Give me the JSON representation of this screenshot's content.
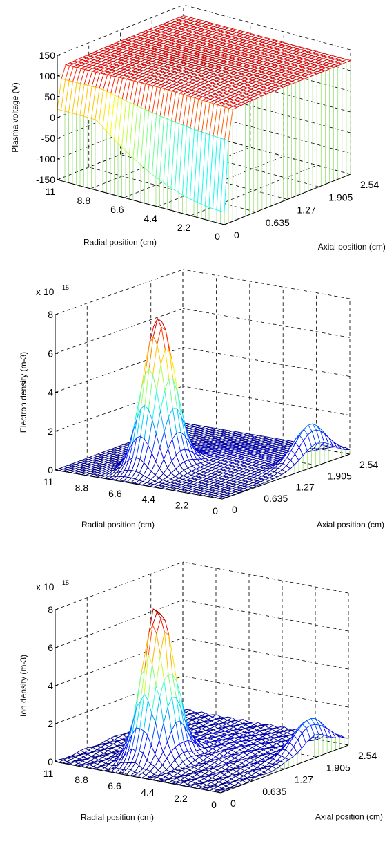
{
  "chart_data": [
    {
      "type": "surface",
      "zlabel": "Plasma voltage (V)",
      "xlabel": "Radial position (cm)",
      "ylabel": "Axial position (cm)",
      "z_multiplier": "",
      "z_ticks": [
        "150",
        "100",
        "50",
        "0",
        "-50",
        "-100",
        "-150"
      ],
      "r_ticks": [
        "11",
        "8.8",
        "6.6",
        "4.4",
        "2.2",
        "0"
      ],
      "a_ticks": [
        "0",
        "0.635",
        "1.27",
        "1.905",
        "2.54"
      ],
      "zlim": [
        -150,
        150
      ],
      "rlim": [
        0,
        11
      ],
      "alim": [
        0,
        2.54
      ],
      "colormap": "jet",
      "surface_description": "Voltage about 125 V over most of the region, falling to near 0 V at the axial end near a=0 and rising toward the outer radius; maximum about 135 V near a≈0.8 cm, r≈5 cm.",
      "key_values": [
        {
          "r": 11,
          "a": 0,
          "z": 0
        },
        {
          "r": 0,
          "a": 0,
          "z": -120
        },
        {
          "r": 5,
          "a": 0.8,
          "z": 135
        },
        {
          "r": 0,
          "a": 2.54,
          "z": 85
        },
        {
          "r": 11,
          "a": 2.54,
          "z": 120
        }
      ]
    },
    {
      "type": "surface",
      "zlabel": "Electron density (m-3)",
      "xlabel": "Radial position (cm)",
      "ylabel": "Axial position (cm)",
      "z_multiplier": "x 10",
      "z_exponent": "15",
      "z_ticks": [
        "8",
        "6",
        "4",
        "2",
        "0"
      ],
      "r_ticks": [
        "11",
        "8.8",
        "6.6",
        "4.4",
        "2.2",
        "0"
      ],
      "a_ticks": [
        "0",
        "0.635",
        "1.27",
        "1.905",
        "2.54"
      ],
      "zlim": [
        0,
        8
      ],
      "rlim": [
        0,
        11
      ],
      "alim": [
        0,
        2.54
      ],
      "colormap": "jet",
      "surface_description": "Sharp peak of about 7.7e15 m-3 near r≈6.5 cm, a≈0.7 cm, decaying to near zero elsewhere with a secondary ridge of about 2e15 near r≈0.5 cm, a≈1.9 cm.",
      "key_values": [
        {
          "r": 6.5,
          "a": 0.7,
          "z": 7.7
        },
        {
          "r": 0.5,
          "a": 1.9,
          "z": 2.0
        },
        {
          "r": 11,
          "a": 0,
          "z": 0
        },
        {
          "r": 11,
          "a": 2.54,
          "z": 0.2
        }
      ]
    },
    {
      "type": "surface",
      "zlabel": "Ion density (m-3)",
      "xlabel": "Radial position (cm)",
      "ylabel": "Axial position (cm)",
      "z_multiplier": "x 10",
      "z_exponent": "15",
      "z_ticks": [
        "8",
        "6",
        "4",
        "2",
        "0"
      ],
      "r_ticks": [
        "11",
        "8.8",
        "6.6",
        "4.4",
        "2.2",
        "0"
      ],
      "a_ticks": [
        "0",
        "0.635",
        "1.27",
        "1.905",
        "2.54"
      ],
      "zlim": [
        0,
        8
      ],
      "rlim": [
        0,
        11
      ],
      "alim": [
        0,
        2.54
      ],
      "colormap": "jet",
      "surface_description": "Noisy peak of about 8e15 m-3 near r≈6.5 cm, a≈0.7 cm, decaying to low values with a secondary ridge of about 1.8e15 near r≈0.5 cm, a≈1.9 cm.",
      "key_values": [
        {
          "r": 6.5,
          "a": 0.7,
          "z": 8.0
        },
        {
          "r": 0.5,
          "a": 1.9,
          "z": 1.8
        },
        {
          "r": 11,
          "a": 0,
          "z": 0
        },
        {
          "r": 11,
          "a": 2.54,
          "z": 0.3
        }
      ]
    }
  ]
}
